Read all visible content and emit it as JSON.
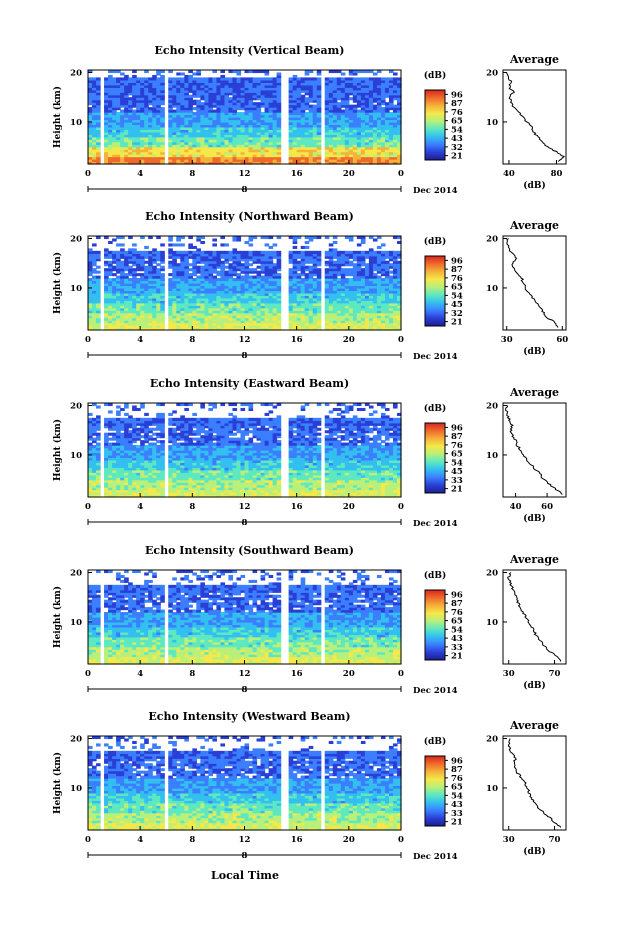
{
  "figure": {
    "xlabel": "Local Time",
    "date_label": "Dec 2014",
    "day_label": "8",
    "colorbar_unit": "(dB)",
    "profile_title": "Average",
    "profile_unit": "(dB)",
    "ylabel": "Height (km)"
  },
  "colors": {
    "colormap": [
      "#1f1f8f",
      "#2a3fd6",
      "#3b7fff",
      "#33bff0",
      "#5ee8c0",
      "#b8f07a",
      "#f5e84a",
      "#f5b13a",
      "#ef6a2a",
      "#d9261f"
    ],
    "gap": "#ffffff",
    "line": "#000000"
  },
  "chart_data": [
    {
      "type": "heatmap",
      "title": "Echo Intensity (Vertical Beam)",
      "xlabel": "Local Time",
      "ylabel": "Height (km)",
      "x_ticks": [
        "0",
        "4",
        "8",
        "12",
        "16",
        "20",
        "0"
      ],
      "xlim": [
        0,
        24
      ],
      "ylim": [
        1.5,
        20.5
      ],
      "y_ticks": [
        "20",
        "10"
      ],
      "colorbar_ticks": [
        "96",
        "87",
        "76",
        "65",
        "54",
        "43",
        "32",
        "21"
      ],
      "data_gaps_hours": [
        [
          0.9,
          1.3
        ],
        [
          5.9,
          6.2
        ],
        [
          14.8,
          15.3
        ],
        [
          17.7,
          18.0
        ]
      ],
      "profile": {
        "xlim": [
          35,
          88
        ],
        "x_ticks": [
          "40",
          "80"
        ],
        "heights": [
          2,
          3,
          4,
          5,
          6,
          7,
          8,
          9,
          10,
          11,
          12,
          13,
          14,
          15,
          16,
          17,
          18,
          19,
          20
        ],
        "values": [
          82,
          86,
          80,
          72,
          68,
          64,
          61,
          59,
          55,
          52,
          48,
          44,
          42,
          40,
          44,
          40,
          42,
          39,
          38
        ]
      }
    },
    {
      "type": "heatmap",
      "title": "Echo Intensity (Northward Beam)",
      "xlabel": "Local Time",
      "ylabel": "Height (km)",
      "x_ticks": [
        "0",
        "4",
        "8",
        "12",
        "16",
        "20",
        "0"
      ],
      "xlim": [
        0,
        24
      ],
      "ylim": [
        1.5,
        20.5
      ],
      "y_ticks": [
        "20",
        "10"
      ],
      "colorbar_ticks": [
        "96",
        "87",
        "76",
        "65",
        "54",
        "45",
        "32",
        "21"
      ],
      "data_gaps_hours": [
        [
          0.9,
          1.3
        ],
        [
          5.9,
          6.2
        ],
        [
          14.8,
          15.3
        ],
        [
          17.7,
          18.0
        ]
      ],
      "profile": {
        "xlim": [
          28,
          62
        ],
        "x_ticks": [
          "30",
          "60"
        ],
        "heights": [
          2,
          3,
          4,
          5,
          6,
          7,
          8,
          9,
          10,
          11,
          12,
          13,
          14,
          15,
          16,
          17,
          18,
          19,
          20
        ],
        "values": [
          58,
          56,
          52,
          50,
          48,
          46,
          44,
          42,
          40,
          39,
          38,
          36,
          34,
          33,
          35,
          33,
          31,
          30,
          31
        ]
      }
    },
    {
      "type": "heatmap",
      "title": "Echo Intensity (Eastward Beam)",
      "xlabel": "Local Time",
      "ylabel": "Height (km)",
      "x_ticks": [
        "0",
        "4",
        "8",
        "12",
        "16",
        "20",
        "0"
      ],
      "xlim": [
        0,
        24
      ],
      "ylim": [
        1.5,
        20.5
      ],
      "y_ticks": [
        "20",
        "10"
      ],
      "colorbar_ticks": [
        "96",
        "87",
        "76",
        "65",
        "54",
        "45",
        "33",
        "21"
      ],
      "data_gaps_hours": [
        [
          0.9,
          1.3
        ],
        [
          5.9,
          6.2
        ],
        [
          14.8,
          15.3
        ],
        [
          17.7,
          18.0
        ]
      ],
      "profile": {
        "xlim": [
          32,
          72
        ],
        "x_ticks": [
          "40",
          "60"
        ],
        "heights": [
          2,
          3,
          4,
          5,
          6,
          7,
          8,
          9,
          10,
          11,
          12,
          13,
          14,
          15,
          16,
          17,
          18,
          19,
          20
        ],
        "values": [
          70,
          66,
          62,
          58,
          56,
          53,
          50,
          47,
          45,
          43,
          41,
          40,
          38,
          37,
          38,
          36,
          35,
          34,
          35
        ]
      }
    },
    {
      "type": "heatmap",
      "title": "Echo Intensity (Southward Beam)",
      "xlabel": "Local Time",
      "ylabel": "Height (km)",
      "x_ticks": [
        "0",
        "4",
        "8",
        "12",
        "16",
        "20",
        "0"
      ],
      "xlim": [
        0,
        24
      ],
      "ylim": [
        1.5,
        20.5
      ],
      "y_ticks": [
        "20",
        "10"
      ],
      "colorbar_ticks": [
        "96",
        "87",
        "76",
        "65",
        "54",
        "43",
        "33",
        "21"
      ],
      "data_gaps_hours": [
        [
          0.9,
          1.3
        ],
        [
          5.9,
          6.2
        ],
        [
          14.8,
          15.3
        ],
        [
          17.7,
          18.0
        ]
      ],
      "profile": {
        "xlim": [
          25,
          80
        ],
        "x_ticks": [
          "30",
          "70"
        ],
        "heights": [
          2,
          3,
          4,
          5,
          6,
          7,
          8,
          9,
          10,
          11,
          12,
          13,
          14,
          15,
          16,
          17,
          18,
          19,
          20
        ],
        "values": [
          76,
          72,
          66,
          62,
          58,
          55,
          52,
          50,
          47,
          45,
          42,
          40,
          38,
          36,
          35,
          33,
          31,
          30,
          32
        ]
      }
    },
    {
      "type": "heatmap",
      "title": "Echo Intensity (Westward Beam)",
      "xlabel": "Local Time",
      "ylabel": "Height (km)",
      "x_ticks": [
        "0",
        "4",
        "8",
        "12",
        "16",
        "20",
        "0"
      ],
      "xlim": [
        0,
        24
      ],
      "ylim": [
        1.5,
        20.5
      ],
      "y_ticks": [
        "20",
        "10"
      ],
      "colorbar_ticks": [
        "96",
        "87",
        "76",
        "65",
        "54",
        "43",
        "33",
        "21"
      ],
      "data_gaps_hours": [
        [
          0.9,
          1.3
        ],
        [
          5.9,
          6.2
        ],
        [
          14.8,
          15.3
        ],
        [
          17.7,
          18.0
        ]
      ],
      "profile": {
        "xlim": [
          25,
          80
        ],
        "x_ticks": [
          "30",
          "70"
        ],
        "heights": [
          2,
          3,
          4,
          5,
          6,
          7,
          8,
          9,
          10,
          11,
          12,
          13,
          14,
          15,
          16,
          17,
          18,
          19,
          20
        ],
        "values": [
          76,
          70,
          66,
          60,
          56,
          53,
          50,
          48,
          46,
          44,
          41,
          38,
          36,
          34,
          36,
          33,
          31,
          30,
          31
        ]
      }
    }
  ]
}
